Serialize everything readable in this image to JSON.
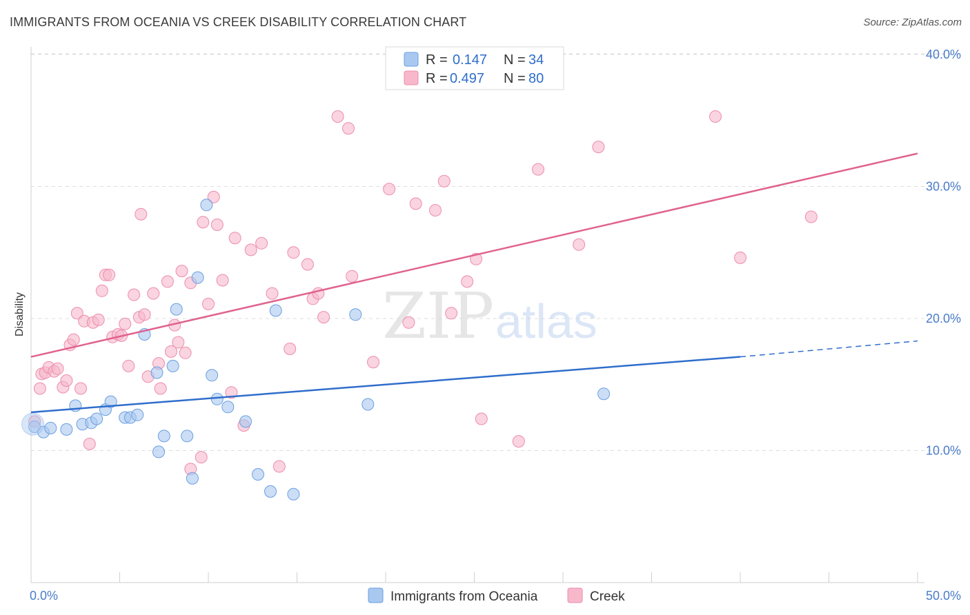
{
  "title": "IMMIGRANTS FROM OCEANIA VS CREEK DISABILITY CORRELATION CHART",
  "source": "Source: ZipAtlas.com",
  "watermark": {
    "zip": "ZIP",
    "atlas": "atlas"
  },
  "colors": {
    "blue_fill": "#a9c8f0",
    "blue_stroke": "#6b9ee0",
    "blue_line": "#2f6dcc",
    "pink_fill": "#f7b8cb",
    "pink_stroke": "#ec8dab",
    "pink_line": "#e0628f",
    "tick_text": "#4a7cc9",
    "grid": "#dddddd"
  },
  "legend": {
    "rows": [
      {
        "r_label": "R = ",
        "r_value": "0.147",
        "n_label": "N = ",
        "n_value": "34",
        "series": "blue"
      },
      {
        "r_label": "R = ",
        "r_value": "0.497",
        "n_label": "N = ",
        "n_value": "80",
        "series": "pink"
      }
    ]
  },
  "chart_data": {
    "type": "scatter",
    "title": "IMMIGRANTS FROM OCEANIA VS CREEK DISABILITY CORRELATION CHART",
    "xlabel": "",
    "ylabel": "Disability",
    "xlim": [
      0,
      50
    ],
    "ylim": [
      0,
      41.5
    ],
    "x_tick_labels": [
      "0.0%",
      "50.0%"
    ],
    "y_ticks": [
      10,
      20,
      30,
      40
    ],
    "y_tick_labels": [
      "10.0%",
      "20.0%",
      "30.0%",
      "40.0%"
    ],
    "grid": "horizontal-dashed",
    "legend_position": "top-center",
    "series": [
      {
        "name": "Immigrants from Oceania",
        "color": "blue",
        "r": 0.147,
        "n": 34,
        "trend": {
          "x0": 0,
          "y0": 12.9,
          "x1": 40,
          "y1": 17.1,
          "dashed_to_x": 50,
          "dashed_to_y": 18.3
        },
        "points": [
          [
            0.2,
            11.8
          ],
          [
            0.7,
            11.4
          ],
          [
            1.1,
            11.7
          ],
          [
            2.0,
            11.6
          ],
          [
            2.5,
            13.4
          ],
          [
            2.9,
            12.0
          ],
          [
            3.4,
            12.1
          ],
          [
            3.7,
            12.4
          ],
          [
            4.2,
            13.1
          ],
          [
            4.5,
            13.7
          ],
          [
            5.3,
            12.5
          ],
          [
            5.6,
            12.5
          ],
          [
            6.0,
            12.7
          ],
          [
            6.4,
            18.8
          ],
          [
            7.1,
            15.9
          ],
          [
            7.2,
            9.9
          ],
          [
            7.5,
            11.1
          ],
          [
            8.0,
            16.4
          ],
          [
            8.2,
            20.7
          ],
          [
            8.8,
            11.1
          ],
          [
            9.1,
            7.9
          ],
          [
            9.4,
            23.1
          ],
          [
            9.9,
            28.6
          ],
          [
            10.2,
            15.7
          ],
          [
            10.5,
            13.9
          ],
          [
            11.1,
            13.3
          ],
          [
            12.1,
            12.2
          ],
          [
            12.8,
            8.2
          ],
          [
            13.5,
            6.9
          ],
          [
            13.8,
            20.6
          ],
          [
            14.8,
            6.7
          ],
          [
            18.3,
            20.3
          ],
          [
            19.0,
            13.5
          ],
          [
            32.3,
            14.3
          ]
        ]
      },
      {
        "name": "Creek",
        "color": "pink",
        "r": 0.497,
        "n": 80,
        "trend": {
          "x0": 0,
          "y0": 17.1,
          "x1": 50,
          "y1": 32.5
        },
        "points": [
          [
            0.2,
            12.2
          ],
          [
            0.5,
            14.7
          ],
          [
            0.6,
            15.8
          ],
          [
            0.8,
            15.9
          ],
          [
            1.0,
            16.3
          ],
          [
            1.3,
            16.0
          ],
          [
            1.5,
            16.2
          ],
          [
            1.8,
            14.8
          ],
          [
            2.0,
            15.3
          ],
          [
            2.2,
            18.0
          ],
          [
            2.4,
            18.4
          ],
          [
            2.6,
            20.4
          ],
          [
            2.8,
            14.7
          ],
          [
            3.0,
            19.8
          ],
          [
            3.3,
            10.5
          ],
          [
            3.5,
            19.7
          ],
          [
            3.8,
            19.9
          ],
          [
            4.0,
            22.1
          ],
          [
            4.2,
            23.3
          ],
          [
            4.4,
            23.3
          ],
          [
            4.6,
            18.6
          ],
          [
            4.9,
            18.8
          ],
          [
            5.1,
            18.7
          ],
          [
            5.3,
            19.6
          ],
          [
            5.5,
            16.4
          ],
          [
            5.8,
            21.8
          ],
          [
            6.1,
            20.1
          ],
          [
            6.2,
            27.9
          ],
          [
            6.4,
            20.3
          ],
          [
            6.6,
            15.6
          ],
          [
            6.9,
            21.9
          ],
          [
            7.2,
            16.6
          ],
          [
            7.3,
            14.7
          ],
          [
            7.7,
            22.8
          ],
          [
            7.9,
            17.5
          ],
          [
            8.1,
            19.5
          ],
          [
            8.3,
            18.2
          ],
          [
            8.5,
            23.6
          ],
          [
            8.7,
            17.4
          ],
          [
            9.0,
            22.7
          ],
          [
            9.0,
            8.6
          ],
          [
            9.6,
            9.5
          ],
          [
            9.7,
            27.3
          ],
          [
            10.0,
            21.1
          ],
          [
            10.3,
            29.2
          ],
          [
            10.5,
            27.1
          ],
          [
            10.8,
            22.9
          ],
          [
            11.3,
            14.4
          ],
          [
            11.5,
            26.1
          ],
          [
            12.0,
            11.9
          ],
          [
            12.4,
            25.2
          ],
          [
            13.0,
            25.7
          ],
          [
            13.6,
            21.9
          ],
          [
            14.0,
            8.8
          ],
          [
            14.6,
            17.7
          ],
          [
            14.8,
            25.0
          ],
          [
            15.6,
            24.1
          ],
          [
            15.9,
            21.5
          ],
          [
            16.2,
            21.9
          ],
          [
            16.5,
            20.1
          ],
          [
            17.3,
            35.3
          ],
          [
            17.9,
            34.4
          ],
          [
            18.1,
            23.2
          ],
          [
            19.3,
            16.7
          ],
          [
            20.2,
            29.8
          ],
          [
            21.3,
            19.7
          ],
          [
            21.7,
            28.7
          ],
          [
            22.8,
            28.2
          ],
          [
            23.3,
            30.4
          ],
          [
            23.7,
            20.4
          ],
          [
            24.6,
            22.8
          ],
          [
            25.1,
            24.5
          ],
          [
            25.4,
            12.4
          ],
          [
            27.5,
            10.7
          ],
          [
            28.6,
            31.3
          ],
          [
            30.9,
            25.6
          ],
          [
            32.0,
            33.0
          ],
          [
            38.6,
            35.3
          ],
          [
            40.0,
            24.6
          ],
          [
            44.0,
            27.7
          ]
        ]
      }
    ]
  }
}
